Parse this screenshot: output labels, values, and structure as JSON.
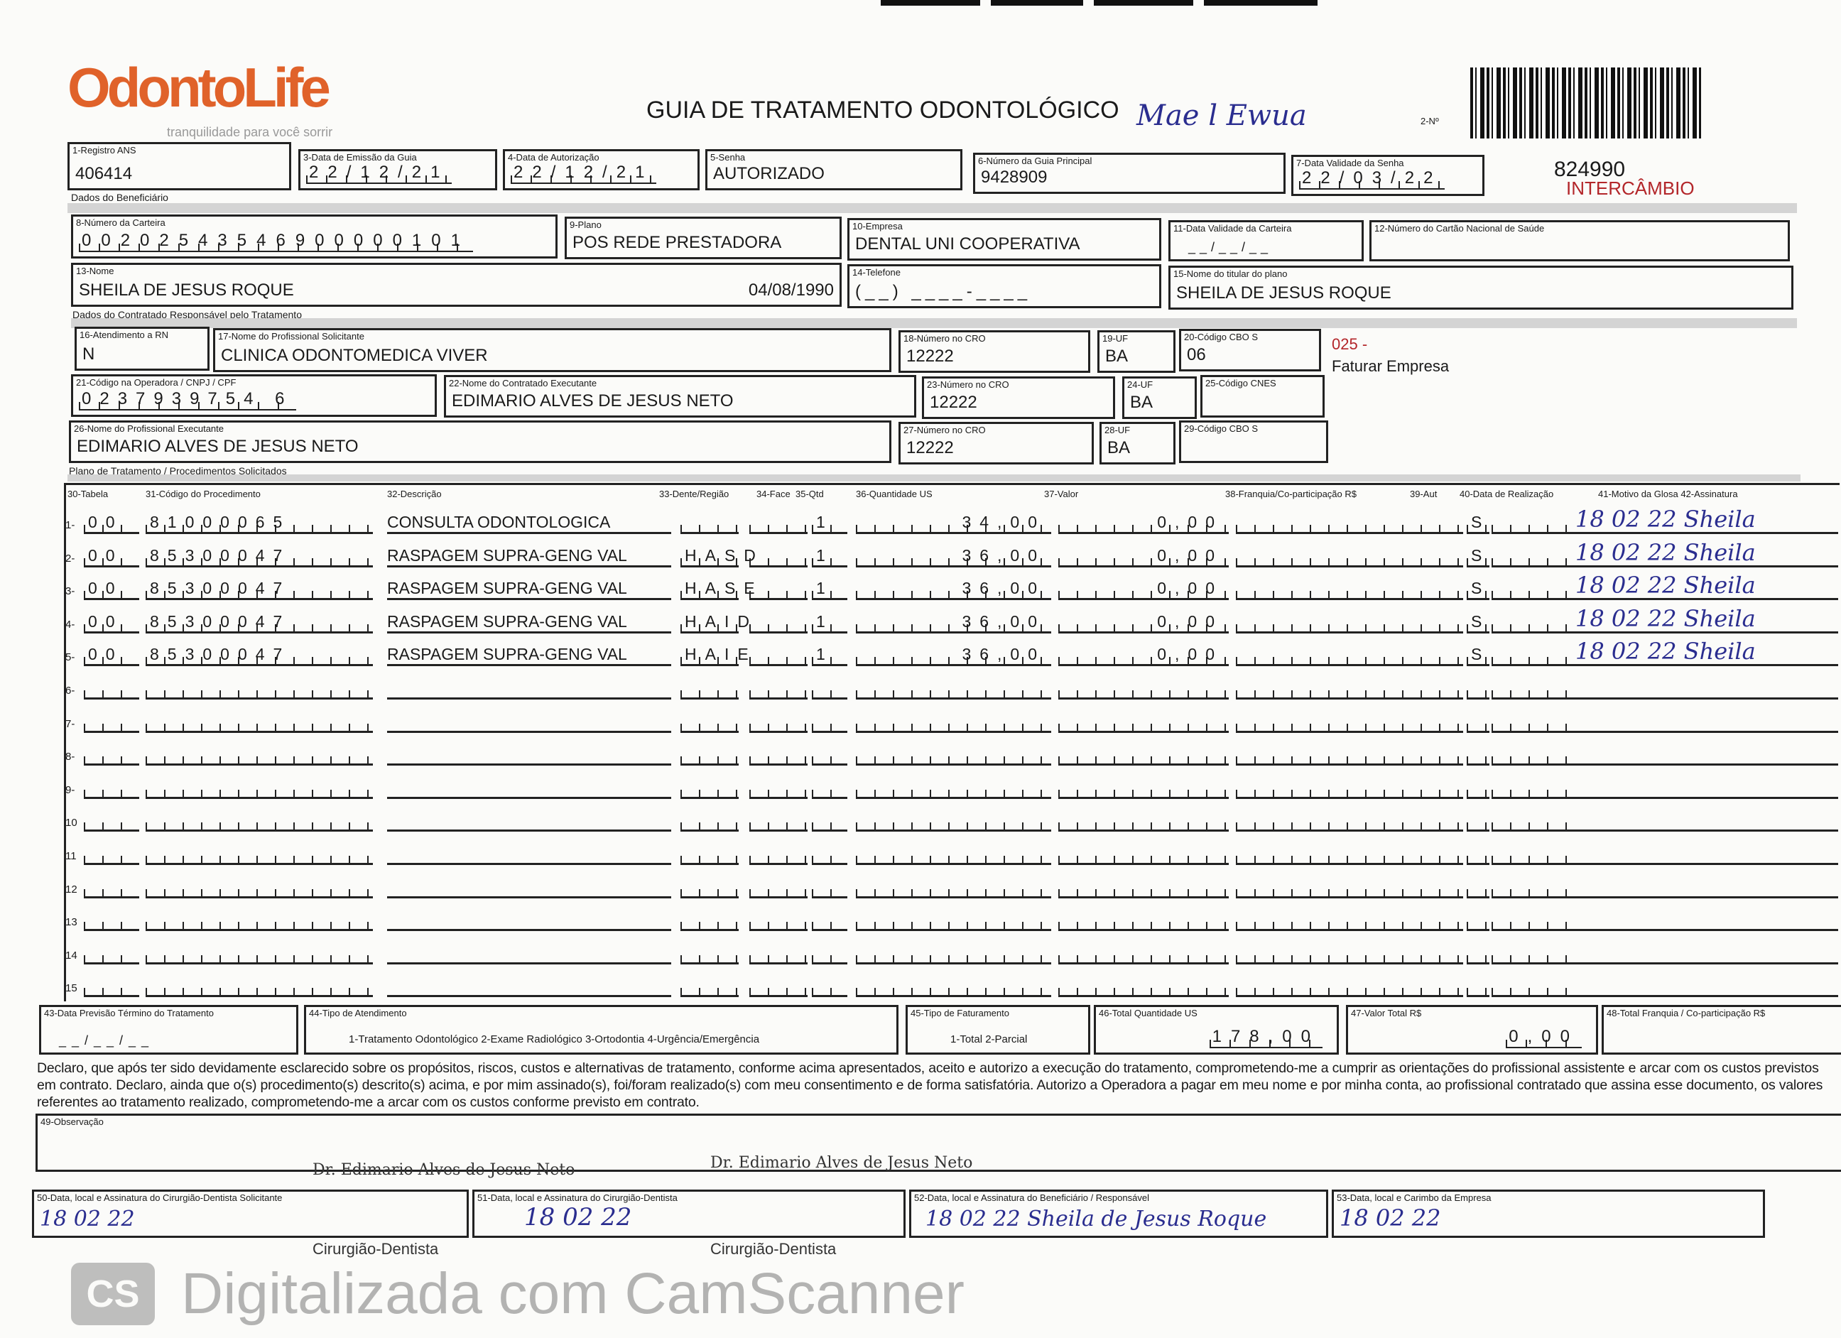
{
  "header": {
    "logo_text": "OdontoLife",
    "logo_tagline": "tranquilidade para você sorrir",
    "title": "GUIA DE TRATAMENTO ODONTOLÓGICO",
    "guide_number_label": "2-Nº",
    "guide_number": "824990",
    "exchange_label": "INTERCÂMBIO",
    "handwritten_top": "Mae l Ewua"
  },
  "fields": {
    "f1": {
      "label": "1-Registro ANS",
      "value": "406414"
    },
    "f3": {
      "label": "3-Data de Emissão da Guia",
      "value": "22/12/21"
    },
    "f4": {
      "label": "4-Data de Autorização",
      "value": "22/12/21"
    },
    "f5": {
      "label": "5-Senha",
      "value": "AUTORIZADO"
    },
    "f6": {
      "label": "6-Número da Guia Principal",
      "value": "9428909"
    },
    "f7": {
      "label": "7-Data Validade da Senha",
      "value": "22/03/22"
    },
    "section_beneficiary": "Dados do Beneficiário",
    "f8": {
      "label": "8-Número da Carteira",
      "value": "00202543546900000101"
    },
    "f9": {
      "label": "9-Plano",
      "value": "POS REDE PRESTADORA"
    },
    "f10": {
      "label": "10-Empresa",
      "value": "DENTAL UNI COOPERATIVA"
    },
    "f11": {
      "label": "11-Data Validade da Carteira",
      "value": "__/__/__"
    },
    "f12": {
      "label": "12-Número do Cartão Nacional de Saúde",
      "value": ""
    },
    "f13": {
      "label": "13-Nome",
      "value": "SHEILA DE JESUS ROQUE",
      "birth": "04/08/1990"
    },
    "f14": {
      "label": "14-Telefone",
      "value": "(__) ____-____"
    },
    "f15": {
      "label": "15-Nome do titular do plano",
      "value": "SHEILA DE JESUS ROQUE"
    },
    "section_contracted": "Dados do Contratado Responsável pelo Tratamento",
    "f16": {
      "label": "16-Atendimento a RN",
      "value": "N"
    },
    "f17": {
      "label": "17-Nome do Profissional Solicitante",
      "value": "CLINICA ODONTOMEDICA VIVER"
    },
    "f18": {
      "label": "18-Número no CRO",
      "value": "12222"
    },
    "f19": {
      "label": "19-UF",
      "value": "BA"
    },
    "f20": {
      "label": "20-Código CBO S",
      "value": "06"
    },
    "billing_code": "025 -",
    "billing_text": "Faturar Empresa",
    "f21": {
      "label": "21-Código na Operadora / CNPJ / CPF",
      "value": "0237939754 6"
    },
    "f22": {
      "label": "22-Nome do Contratado Executante",
      "value": "EDIMARIO ALVES DE JESUS NETO"
    },
    "f23": {
      "label": "23-Número no CRO",
      "value": "12222"
    },
    "f24": {
      "label": "24-UF",
      "value": "BA"
    },
    "f25": {
      "label": "25-Código CNES",
      "value": ""
    },
    "f26": {
      "label": "26-Nome do Profissional Executante",
      "value": "EDIMARIO ALVES DE JESUS NETO"
    },
    "f27": {
      "label": "27-Número no CRO",
      "value": "12222"
    },
    "f28": {
      "label": "28-UF",
      "value": "BA"
    },
    "f29": {
      "label": "29-Código CBO S",
      "value": ""
    },
    "section_plan": "Plano de Tratamento / Procedimentos Solicitados"
  },
  "table": {
    "headers": [
      "30-Tabela",
      "31-Código do Procedimento",
      "32-Descrição",
      "33-Dente/Região",
      "34-Face",
      "35-Qtd",
      "36-Quantidade US",
      "37-Valor",
      "38-Franquia/Co-participação R$",
      "39-Aut",
      "40-Data de Realização",
      "41-Motivo da Glosa 42-Assinatura"
    ],
    "rows": [
      {
        "n": "1-",
        "tabela": "00",
        "codigo": "81000065",
        "descricao": "CONSULTA ODONTOLOGICA",
        "dente": "",
        "face": "",
        "qtd": "1",
        "us": "34,00",
        "valor": "0,00",
        "franquia": "",
        "aut": "S",
        "data": "",
        "assinatura": "18 02 22 Sheila"
      },
      {
        "n": "2-",
        "tabela": "00",
        "codigo": "85300047",
        "descricao": "RASPAGEM SUPRA-GENG VAL",
        "dente": "HASD",
        "face": "",
        "qtd": "1",
        "us": "36,00",
        "valor": "0,00",
        "franquia": "",
        "aut": "S",
        "data": "",
        "assinatura": "18 02 22 Sheila"
      },
      {
        "n": "3-",
        "tabela": "00",
        "codigo": "85300047",
        "descricao": "RASPAGEM SUPRA-GENG VAL",
        "dente": "HASE",
        "face": "",
        "qtd": "1",
        "us": "36,00",
        "valor": "0,00",
        "franquia": "",
        "aut": "S",
        "data": "",
        "assinatura": "18 02 22 Sheila"
      },
      {
        "n": "4-",
        "tabela": "00",
        "codigo": "85300047",
        "descricao": "RASPAGEM SUPRA-GENG VAL",
        "dente": "HAID",
        "face": "",
        "qtd": "1",
        "us": "36,00",
        "valor": "0,00",
        "franquia": "",
        "aut": "S",
        "data": "",
        "assinatura": "18 02 22 Sheila"
      },
      {
        "n": "5-",
        "tabela": "00",
        "codigo": "85300047",
        "descricao": "RASPAGEM SUPRA-GENG VAL",
        "dente": "HAIE",
        "face": "",
        "qtd": "1",
        "us": "36,00",
        "valor": "0,00",
        "franquia": "",
        "aut": "S",
        "data": "",
        "assinatura": "18 02 22 Sheila"
      },
      {
        "n": "6-"
      },
      {
        "n": "7-"
      },
      {
        "n": "8-"
      },
      {
        "n": "9-"
      },
      {
        "n": "10"
      },
      {
        "n": "11"
      },
      {
        "n": "12"
      },
      {
        "n": "13"
      },
      {
        "n": "14"
      },
      {
        "n": "15"
      }
    ]
  },
  "footer": {
    "f43": {
      "label": "43-Data Previsão Término do Tratamento",
      "value": "__/__/__"
    },
    "f44": {
      "label": "44-Tipo de Atendimento",
      "value": "1-Tratamento Odontológico 2-Exame Radiológico 3-Ortodontia 4-Urgência/Emergência"
    },
    "f45": {
      "label": "45-Tipo de Faturamento",
      "value": "1-Total 2-Parcial"
    },
    "f46": {
      "label": "46-Total Quantidade US",
      "value": "178,00"
    },
    "f47": {
      "label": "47-Valor Total R$",
      "value": "0,00"
    },
    "f48": {
      "label": "48-Total Franquia / Co-participação R$",
      "value": ""
    },
    "declaration": "Declaro, que após ter sido devidamente esclarecido sobre os propósitos, riscos, custos e alternativas de tratamento, conforme acima apresentados, aceito e autorizo a execução do tratamento, comprometendo-me a cumprir as orientações do profissional assistente e arcar com os custos previstos em contrato. Declaro, ainda que o(s) procedimento(s) descrito(s) acima, e por mim assinado(s), foi/foram realizado(s) com meu consentimento e de forma satisfatória. Autorizo a Operadora a pagar em meu nome e por minha conta, ao profissional contratado que assina esse documento, os valores referentes ao tratamento realizado, comprometendo-me a arcar com os custos conforme previsto em contrato.",
    "f49": {
      "label": "49-Observação",
      "value": ""
    },
    "f50": {
      "label": "50-Data, local e Assinatura do Cirurgião-Dentista Solicitante",
      "value": "18 02 22"
    },
    "f51": {
      "label": "51-Data, local e Assinatura do Cirurgião-Dentista",
      "value": "18 02 22"
    },
    "f52": {
      "label": "52-Data, local e Assinatura do Beneficiário / Responsável",
      "value": "18 02 22 Sheila de Jesus Roque"
    },
    "f53": {
      "label": "53-Data, local e Carimbo da Empresa",
      "value": "18 02 22"
    },
    "stamp_name": "Dr. Edimario Alves de Jesus Neto",
    "stamp_title": "Cirurgião-Dentista",
    "watermark": "Digitalizada com CamScanner",
    "watermark_icon": "CS"
  },
  "colors": {
    "accent": "#e0622a",
    "red_text": "#b3262a",
    "ink": "#2a2d8f"
  }
}
